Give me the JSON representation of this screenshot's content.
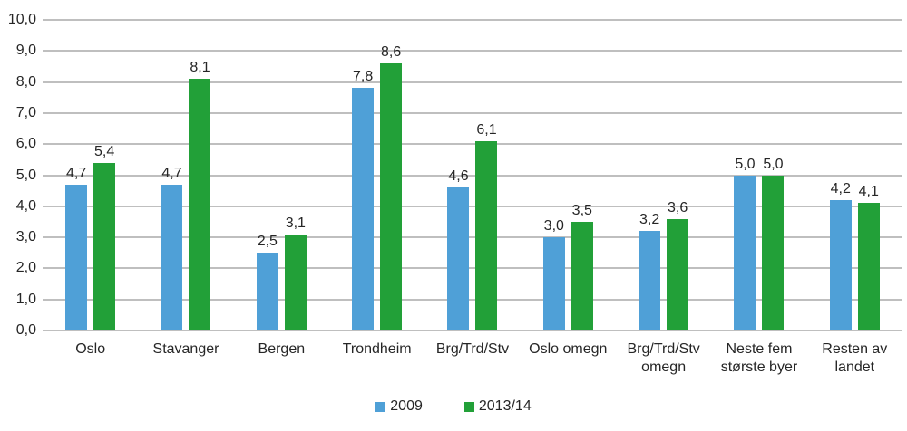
{
  "chart_data": {
    "type": "bar",
    "title": "",
    "xlabel": "",
    "ylabel": "",
    "categories": [
      "Oslo",
      "Stavanger",
      "Bergen",
      "Trondheim",
      "Brg/Trd/Stv",
      "Oslo omegn",
      "Brg/Trd/Stv omegn",
      "Neste fem største byer",
      "Resten av landet"
    ],
    "category_label_lines": [
      [
        "Oslo"
      ],
      [
        "Stavanger"
      ],
      [
        "Bergen"
      ],
      [
        "Trondheim"
      ],
      [
        "Brg/Trd/Stv"
      ],
      [
        "Oslo omegn"
      ],
      [
        "Brg/Trd/Stv",
        "omegn"
      ],
      [
        "Neste fem",
        "største byer"
      ],
      [
        "Resten av",
        "landet"
      ]
    ],
    "series": [
      {
        "name": "2009",
        "color": "#4fa0d7",
        "values": [
          4.7,
          4.7,
          2.5,
          7.8,
          4.6,
          3.0,
          3.2,
          5.0,
          4.2
        ],
        "value_labels": [
          "4,7",
          "4,7",
          "2,5",
          "7,8",
          "4,6",
          "3,0",
          "3,2",
          "5,0",
          "4,2"
        ]
      },
      {
        "name": "2013/14",
        "color": "#22a038",
        "values": [
          5.4,
          8.1,
          3.1,
          8.6,
          6.1,
          3.5,
          3.6,
          5.0,
          4.1
        ],
        "value_labels": [
          "5,4",
          "8,1",
          "3,1",
          "8,6",
          "6,1",
          "3,5",
          "3,6",
          "5,0",
          "4,1"
        ]
      }
    ],
    "ylim": [
      0,
      10
    ],
    "ytick_step": 1,
    "ytick_labels": [
      "0,0",
      "1,0",
      "2,0",
      "3,0",
      "4,0",
      "5,0",
      "6,0",
      "7,0",
      "8,0",
      "9,0",
      "10,0"
    ],
    "grid": true,
    "legend_position": "bottom-center"
  },
  "colors": {
    "grid": "#bfbfbf",
    "text": "#262626",
    "background": "#ffffff"
  }
}
